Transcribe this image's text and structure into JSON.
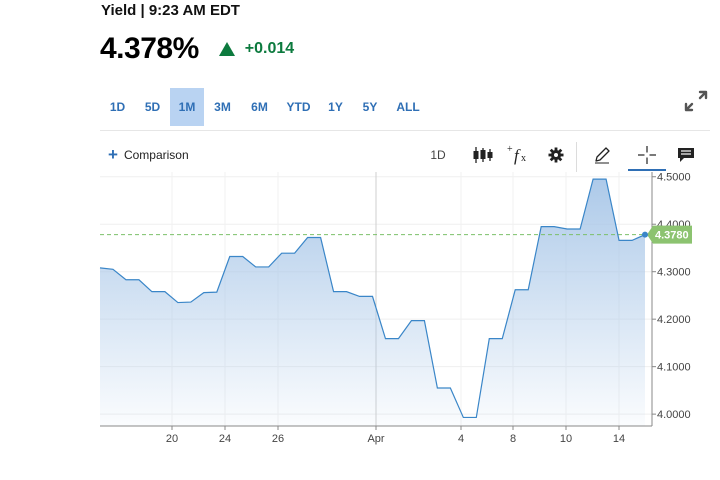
{
  "header": {
    "title": "Yield | 9:23 AM EDT",
    "price": "4.378%",
    "change": "+0.014"
  },
  "range_tabs": [
    {
      "label": "1D",
      "active": false
    },
    {
      "label": "5D",
      "active": false
    },
    {
      "label": "1M",
      "active": true
    },
    {
      "label": "3M",
      "active": false
    },
    {
      "label": "6M",
      "active": false
    },
    {
      "label": "YTD",
      "active": false
    },
    {
      "label": "1Y",
      "active": false
    },
    {
      "label": "5Y",
      "active": false
    },
    {
      "label": "ALL",
      "active": false
    }
  ],
  "toolbar": {
    "comparison_label": "Comparison",
    "interval_label": "1D",
    "icons": [
      "candlestick-icon",
      "function-icon",
      "gear-icon",
      "pencil-icon",
      "crosshair-icon",
      "chat-icon"
    ]
  },
  "colors": {
    "accent": "#2f6fb5",
    "positive": "#0c7a3e",
    "line": "#3a86c8",
    "last_price_tag": "#8cc370",
    "reference_line": "#7cc06a"
  },
  "chart_data": {
    "type": "area",
    "title": "",
    "xlabel": "",
    "ylabel": "",
    "x_tick_labels": [
      "20",
      "24",
      "26",
      "Apr",
      "4",
      "8",
      "10",
      "14"
    ],
    "y_tick_labels": [
      "4.5000",
      "4.4000",
      "4.3000",
      "4.2000",
      "4.1000",
      "4.0000"
    ],
    "ylim": [
      3.975,
      4.51
    ],
    "y_ticks": [
      4.5,
      4.4,
      4.3,
      4.2,
      4.1,
      4.0
    ],
    "last_value_label": "4.3780",
    "last_value": 4.378,
    "reference_value": 4.378,
    "grid": true,
    "series": [
      {
        "values": [
          4.308,
          4.305,
          4.283,
          4.283,
          4.258,
          4.258,
          4.235,
          4.236,
          4.256,
          4.257,
          4.332,
          4.332,
          4.31,
          4.31,
          4.339,
          4.339,
          4.372,
          4.372,
          4.258,
          4.258,
          4.248,
          4.248,
          4.159,
          4.159,
          4.197,
          4.197,
          4.055,
          4.055,
          3.993,
          3.993,
          4.159,
          4.159,
          4.262,
          4.262,
          4.395,
          4.395,
          4.39,
          4.39,
          4.495,
          4.495,
          4.366,
          4.366,
          4.378
        ]
      }
    ]
  }
}
